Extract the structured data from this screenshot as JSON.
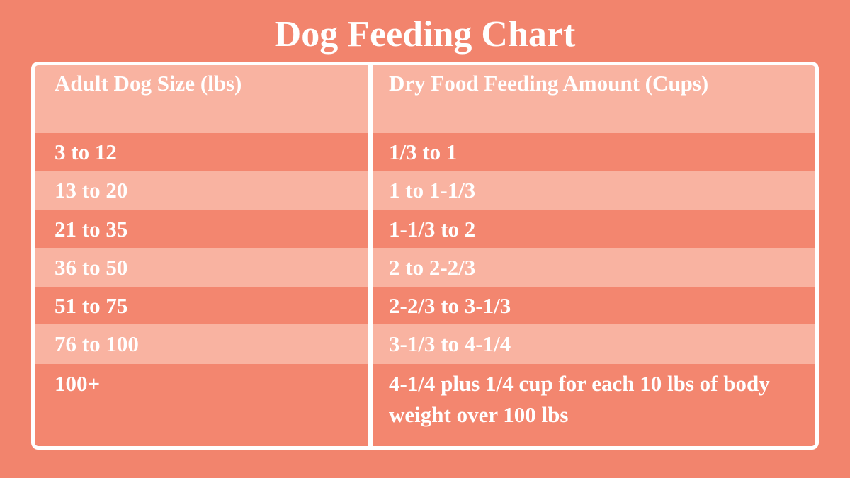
{
  "title": "Dog Feeding Chart",
  "table": {
    "header": [
      "Adult Dog Size (lbs)",
      "Dry Food Feeding Amount (Cups)"
    ],
    "rows": [
      [
        "3 to 12",
        "1/3 to 1"
      ],
      [
        "13 to 20",
        "1 to 1-1/3"
      ],
      [
        "21 to 35",
        "1-1/3 to 2"
      ],
      [
        "36 to 50",
        "2 to 2-2/3"
      ],
      [
        "51 to 75",
        "2-2/3 to 3-1/3"
      ],
      [
        "76 to 100",
        "3-1/3 to 4-1/4"
      ],
      [
        "100+",
        "4-1/4 plus 1/4 cup for each 10 lbs of body weight over 100 lbs"
      ]
    ]
  }
}
